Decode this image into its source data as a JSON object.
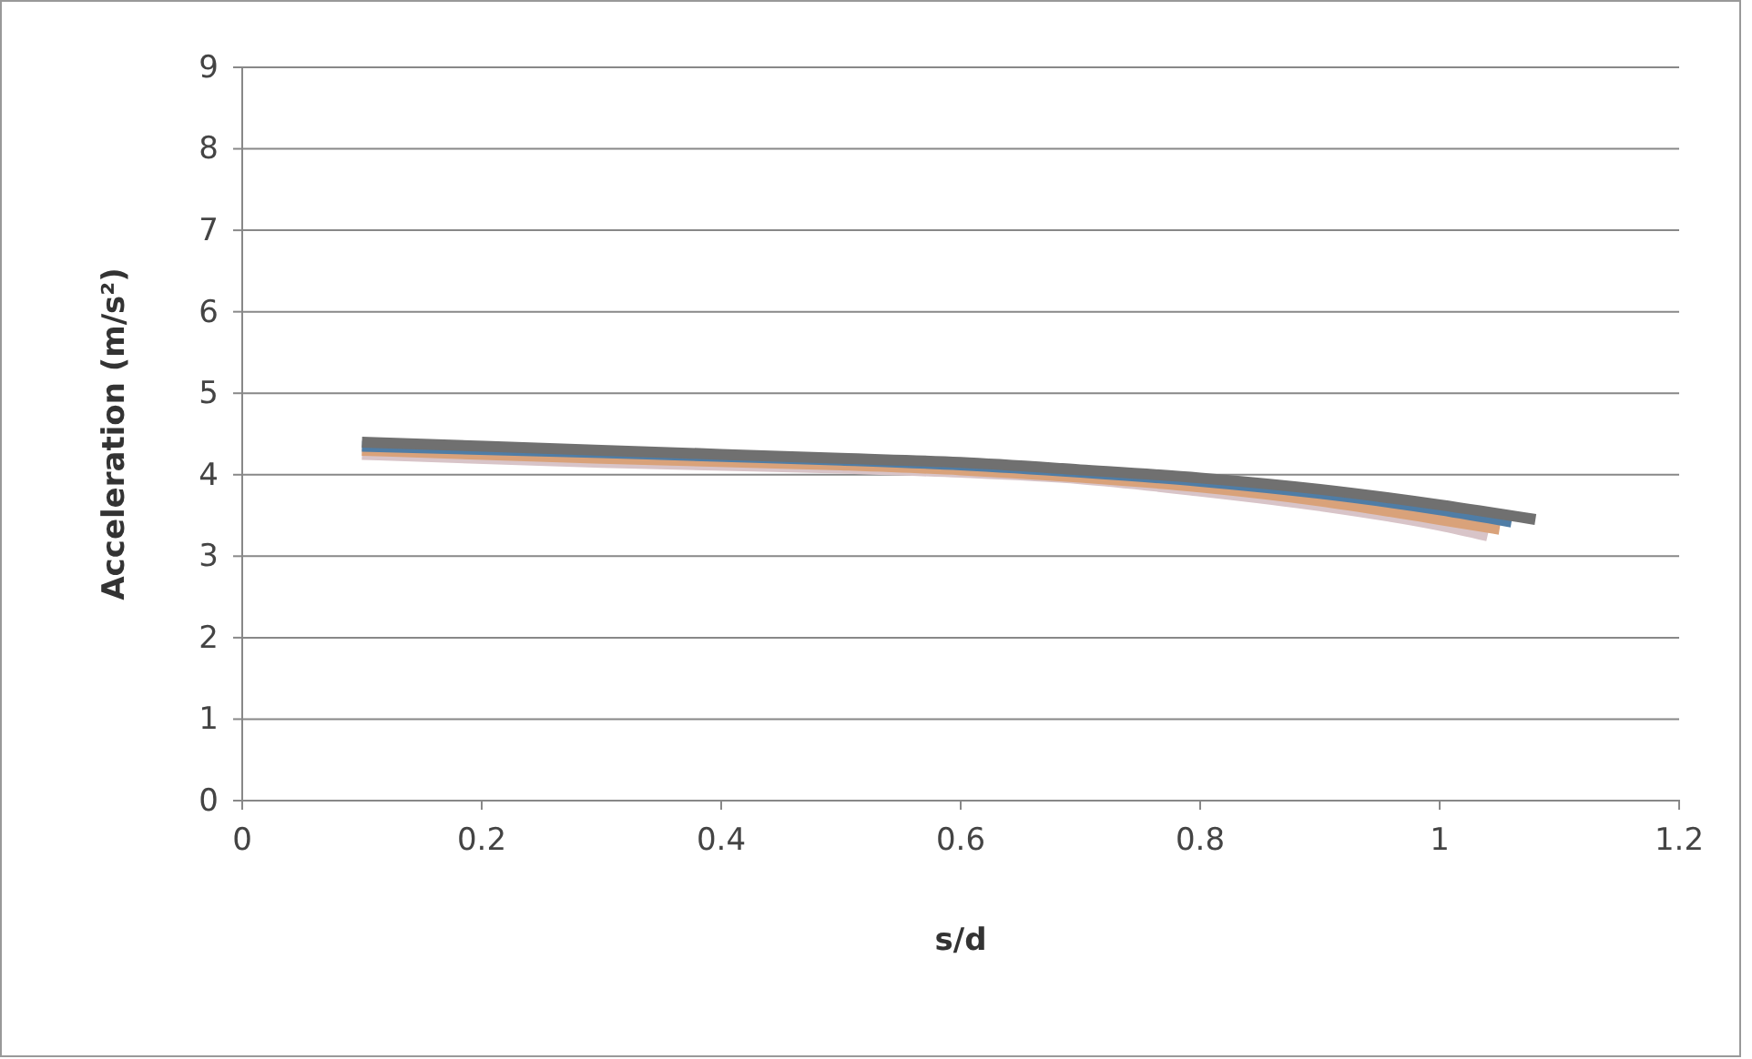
{
  "chart_data": {
    "type": "line",
    "xlabel": "s/d",
    "ylabel": "Acceleration (m/s²)",
    "xlim": [
      0,
      1.2
    ],
    "xticks": [
      0,
      0.2,
      0.4,
      0.6,
      0.8,
      1,
      1.2
    ],
    "ylim": [
      0,
      9
    ],
    "yticks": [
      0,
      1,
      2,
      3,
      4,
      5,
      6,
      7,
      8,
      9
    ],
    "grid": "y",
    "marker": "none",
    "line_style": "solid",
    "series": [
      {
        "color": "#d8c4c8",
        "x": [
          0.1,
          0.3,
          0.5,
          0.6,
          0.7,
          0.8,
          0.9,
          1.0,
          1.04
        ],
        "values": [
          4.25,
          4.15,
          4.08,
          4.03,
          3.95,
          3.8,
          3.62,
          3.38,
          3.25
        ]
      },
      {
        "color": "#d9a27a",
        "x": [
          0.1,
          0.3,
          0.5,
          0.6,
          0.7,
          0.8,
          0.9,
          1.0,
          1.05
        ],
        "values": [
          4.3,
          4.2,
          4.12,
          4.06,
          3.97,
          3.85,
          3.68,
          3.45,
          3.33
        ]
      },
      {
        "color": "#4f7da6",
        "x": [
          0.1,
          0.3,
          0.5,
          0.6,
          0.7,
          0.8,
          0.9,
          1.0,
          1.06
        ],
        "values": [
          4.35,
          4.27,
          4.18,
          4.12,
          4.03,
          3.92,
          3.77,
          3.57,
          3.42
        ]
      },
      {
        "color": "#707070",
        "x": [
          0.1,
          0.3,
          0.5,
          0.6,
          0.7,
          0.8,
          0.9,
          1.0,
          1.08
        ],
        "values": [
          4.4,
          4.3,
          4.2,
          4.15,
          4.06,
          3.96,
          3.82,
          3.63,
          3.45
        ]
      }
    ]
  }
}
